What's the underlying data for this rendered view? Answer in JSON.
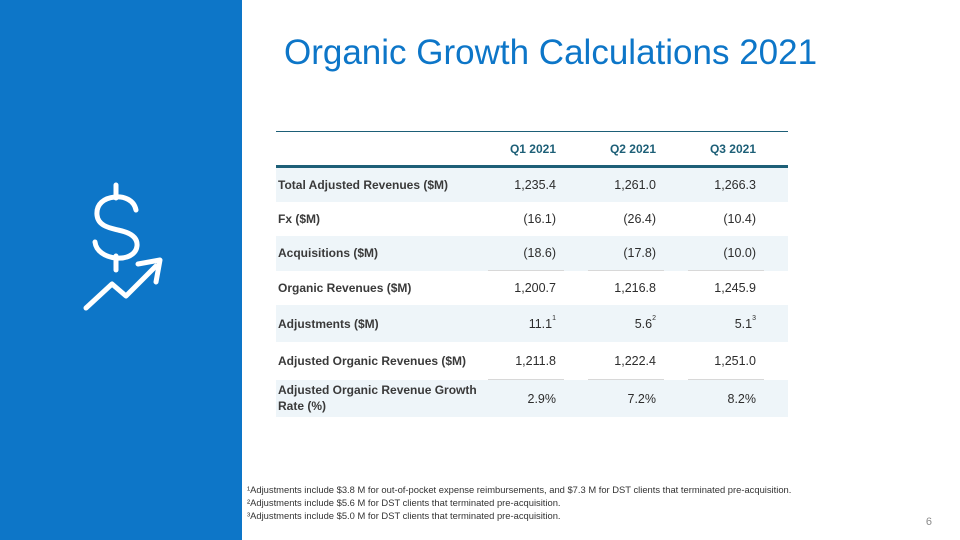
{
  "title": "Organic Growth Calculations 2021",
  "table": {
    "columns": [
      "Q1 2021",
      "Q2 2021",
      "Q3 2021"
    ],
    "rows": [
      {
        "label": "Total Adjusted Revenues ($M)",
        "values": [
          "1,235.4",
          "1,261.0",
          "1,266.3"
        ],
        "sups": [
          "",
          "",
          ""
        ]
      },
      {
        "label": "Fx ($M)",
        "values": [
          "(16.1)",
          "(26.4)",
          "(10.4)"
        ],
        "sups": [
          "",
          "",
          ""
        ]
      },
      {
        "label": "Acquisitions ($M)",
        "values": [
          "(18.6)",
          "(17.8)",
          "(10.0)"
        ],
        "sups": [
          "",
          "",
          ""
        ]
      },
      {
        "label": "Organic Revenues ($M)",
        "values": [
          "1,200.7",
          "1,216.8",
          "1,245.9"
        ],
        "sups": [
          "",
          "",
          ""
        ]
      },
      {
        "label": "Adjustments ($M)",
        "values": [
          "11.1",
          "5.6",
          "5.1"
        ],
        "sups": [
          "1",
          "2",
          "3"
        ]
      },
      {
        "label": "Adjusted Organic Revenues ($M)",
        "values": [
          "1,211.8",
          "1,222.4",
          "1,251.0"
        ],
        "sups": [
          "",
          "",
          ""
        ]
      },
      {
        "label": "Adjusted Organic Revenue Growth Rate (%)",
        "values": [
          "2.9%",
          "7.2%",
          "8.2%"
        ],
        "sups": [
          "",
          "",
          ""
        ]
      }
    ]
  },
  "footnotes": [
    "¹Adjustments include $3.8 M for out-of-pocket expense reimbursements, and $7.3 M for DST clients that terminated pre-acquisition.",
    "²Adjustments include $5.6 M for DST clients that terminated pre-acquisition.",
    "³Adjustments include $5.0 M for DST clients that terminated pre-acquisition."
  ],
  "page_number": "6",
  "colors": {
    "panel": "#0d76c8",
    "title": "#0d76c8",
    "header": "#1d5f77",
    "shade": "#eef5f9"
  },
  "icons": {
    "panel_icon": "dollar-growth-arrow-icon"
  }
}
